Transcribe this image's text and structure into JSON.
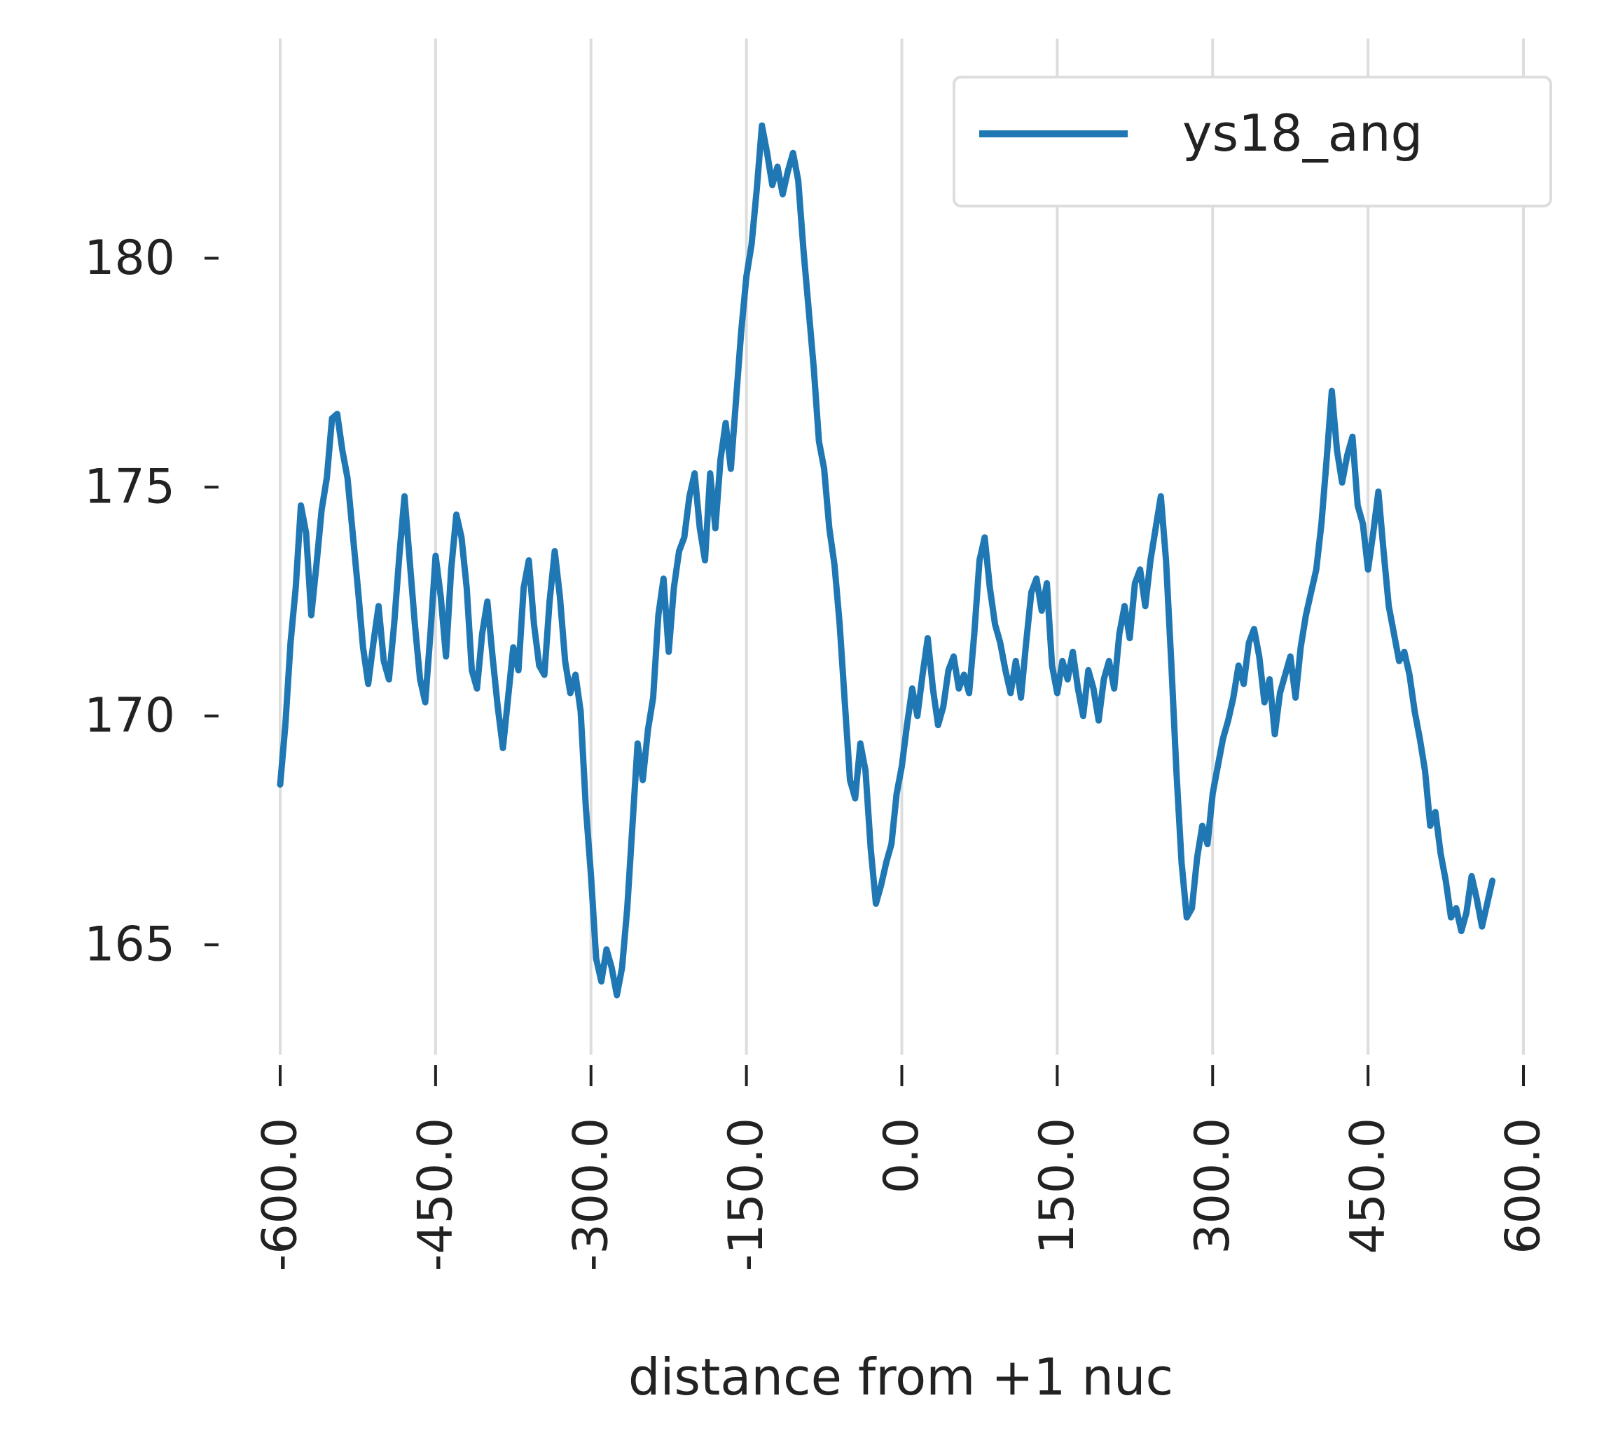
{
  "chart_data": {
    "type": "line",
    "xlabel": "distance from +1 nuc",
    "ylabel": "",
    "xlim": [
      -600,
      600
    ],
    "ylim": [
      162.6,
      184.8
    ],
    "x_ticks": [
      -600,
      -450,
      -300,
      -150,
      0,
      150,
      300,
      450,
      600
    ],
    "x_tick_labels": [
      "-600.0",
      "-450.0",
      "-300.0",
      "-150.0",
      "0.0",
      "150.0",
      "300.0",
      "450.0",
      "600.0"
    ],
    "y_ticks": [
      165,
      170,
      175,
      180
    ],
    "y_tick_labels": [
      "165",
      "170",
      "175",
      "180"
    ],
    "grid": "vertical",
    "legend_position": "top-right",
    "series": [
      {
        "name": "ys18_ang",
        "color": "#1f77b4",
        "points": [
          [
            -600,
            168.5
          ],
          [
            -595,
            169.8
          ],
          [
            -590,
            171.6
          ],
          [
            -585,
            172.8
          ],
          [
            -580,
            174.6
          ],
          [
            -575,
            174.0
          ],
          [
            -570,
            172.2
          ],
          [
            -565,
            173.3
          ],
          [
            -560,
            174.5
          ],
          [
            -555,
            175.2
          ],
          [
            -550,
            176.5
          ],
          [
            -545,
            176.6
          ],
          [
            -540,
            175.8
          ],
          [
            -535,
            175.2
          ],
          [
            -530,
            174.0
          ],
          [
            -525,
            172.8
          ],
          [
            -520,
            171.5
          ],
          [
            -515,
            170.7
          ],
          [
            -510,
            171.6
          ],
          [
            -505,
            172.4
          ],
          [
            -500,
            171.2
          ],
          [
            -495,
            170.8
          ],
          [
            -490,
            172.0
          ],
          [
            -485,
            173.5
          ],
          [
            -480,
            174.8
          ],
          [
            -475,
            173.4
          ],
          [
            -470,
            172.0
          ],
          [
            -465,
            170.8
          ],
          [
            -460,
            170.3
          ],
          [
            -455,
            171.8
          ],
          [
            -450,
            173.5
          ],
          [
            -445,
            172.6
          ],
          [
            -440,
            171.3
          ],
          [
            -435,
            173.2
          ],
          [
            -430,
            174.4
          ],
          [
            -425,
            173.9
          ],
          [
            -420,
            172.8
          ],
          [
            -415,
            171.0
          ],
          [
            -410,
            170.6
          ],
          [
            -405,
            171.8
          ],
          [
            -400,
            172.5
          ],
          [
            -395,
            171.3
          ],
          [
            -390,
            170.2
          ],
          [
            -385,
            169.3
          ],
          [
            -380,
            170.4
          ],
          [
            -375,
            171.5
          ],
          [
            -370,
            171.0
          ],
          [
            -365,
            172.8
          ],
          [
            -360,
            173.4
          ],
          [
            -355,
            172.0
          ],
          [
            -350,
            171.1
          ],
          [
            -345,
            170.9
          ],
          [
            -340,
            172.5
          ],
          [
            -335,
            173.6
          ],
          [
            -330,
            172.6
          ],
          [
            -325,
            171.2
          ],
          [
            -320,
            170.5
          ],
          [
            -315,
            170.9
          ],
          [
            -310,
            170.1
          ],
          [
            -305,
            168.0
          ],
          [
            -300,
            166.5
          ],
          [
            -295,
            164.7
          ],
          [
            -290,
            164.2
          ],
          [
            -285,
            164.9
          ],
          [
            -280,
            164.5
          ],
          [
            -275,
            163.9
          ],
          [
            -270,
            164.5
          ],
          [
            -265,
            165.8
          ],
          [
            -260,
            167.6
          ],
          [
            -255,
            169.4
          ],
          [
            -250,
            168.6
          ],
          [
            -245,
            169.7
          ],
          [
            -240,
            170.4
          ],
          [
            -235,
            172.2
          ],
          [
            -230,
            173.0
          ],
          [
            -225,
            171.4
          ],
          [
            -220,
            172.8
          ],
          [
            -215,
            173.6
          ],
          [
            -210,
            173.9
          ],
          [
            -205,
            174.8
          ],
          [
            -200,
            175.3
          ],
          [
            -195,
            174.1
          ],
          [
            -190,
            173.4
          ],
          [
            -185,
            175.3
          ],
          [
            -180,
            174.1
          ],
          [
            -175,
            175.6
          ],
          [
            -170,
            176.4
          ],
          [
            -165,
            175.4
          ],
          [
            -160,
            176.9
          ],
          [
            -155,
            178.4
          ],
          [
            -150,
            179.6
          ],
          [
            -145,
            180.3
          ],
          [
            -140,
            181.5
          ],
          [
            -135,
            182.9
          ],
          [
            -130,
            182.3
          ],
          [
            -125,
            181.6
          ],
          [
            -120,
            182.0
          ],
          [
            -115,
            181.4
          ],
          [
            -110,
            181.9
          ],
          [
            -105,
            182.3
          ],
          [
            -100,
            181.7
          ],
          [
            -95,
            180.2
          ],
          [
            -90,
            178.9
          ],
          [
            -85,
            177.6
          ],
          [
            -80,
            176.0
          ],
          [
            -75,
            175.4
          ],
          [
            -70,
            174.1
          ],
          [
            -65,
            173.3
          ],
          [
            -60,
            172.0
          ],
          [
            -55,
            170.3
          ],
          [
            -50,
            168.6
          ],
          [
            -45,
            168.2
          ],
          [
            -40,
            169.4
          ],
          [
            -35,
            168.8
          ],
          [
            -30,
            167.1
          ],
          [
            -25,
            165.9
          ],
          [
            -20,
            166.3
          ],
          [
            -15,
            166.8
          ],
          [
            -10,
            167.2
          ],
          [
            -5,
            168.3
          ],
          [
            0,
            168.9
          ],
          [
            5,
            169.8
          ],
          [
            10,
            170.6
          ],
          [
            15,
            170.0
          ],
          [
            20,
            170.9
          ],
          [
            25,
            171.7
          ],
          [
            30,
            170.6
          ],
          [
            35,
            169.8
          ],
          [
            40,
            170.2
          ],
          [
            45,
            171.0
          ],
          [
            50,
            171.3
          ],
          [
            55,
            170.6
          ],
          [
            60,
            170.9
          ],
          [
            65,
            170.5
          ],
          [
            70,
            171.8
          ],
          [
            75,
            173.4
          ],
          [
            80,
            173.9
          ],
          [
            85,
            172.8
          ],
          [
            90,
            172.0
          ],
          [
            95,
            171.6
          ],
          [
            100,
            171.0
          ],
          [
            105,
            170.5
          ],
          [
            110,
            171.2
          ],
          [
            115,
            170.4
          ],
          [
            120,
            171.6
          ],
          [
            125,
            172.7
          ],
          [
            130,
            173.0
          ],
          [
            135,
            172.3
          ],
          [
            140,
            172.9
          ],
          [
            145,
            171.1
          ],
          [
            150,
            170.5
          ],
          [
            155,
            171.2
          ],
          [
            160,
            170.8
          ],
          [
            165,
            171.4
          ],
          [
            170,
            170.6
          ],
          [
            175,
            170.0
          ],
          [
            180,
            171.0
          ],
          [
            185,
            170.6
          ],
          [
            190,
            169.9
          ],
          [
            195,
            170.8
          ],
          [
            200,
            171.2
          ],
          [
            205,
            170.6
          ],
          [
            210,
            171.8
          ],
          [
            215,
            172.4
          ],
          [
            220,
            171.7
          ],
          [
            225,
            172.9
          ],
          [
            230,
            173.2
          ],
          [
            235,
            172.4
          ],
          [
            240,
            173.4
          ],
          [
            245,
            174.1
          ],
          [
            250,
            174.8
          ],
          [
            255,
            173.4
          ],
          [
            260,
            171.2
          ],
          [
            265,
            168.8
          ],
          [
            270,
            166.8
          ],
          [
            275,
            165.6
          ],
          [
            280,
            165.8
          ],
          [
            285,
            166.9
          ],
          [
            290,
            167.6
          ],
          [
            295,
            167.2
          ],
          [
            300,
            168.3
          ],
          [
            305,
            168.9
          ],
          [
            310,
            169.5
          ],
          [
            315,
            169.9
          ],
          [
            320,
            170.4
          ],
          [
            325,
            171.1
          ],
          [
            330,
            170.7
          ],
          [
            335,
            171.6
          ],
          [
            340,
            171.9
          ],
          [
            345,
            171.3
          ],
          [
            350,
            170.3
          ],
          [
            355,
            170.8
          ],
          [
            360,
            169.6
          ],
          [
            365,
            170.5
          ],
          [
            370,
            170.9
          ],
          [
            375,
            171.3
          ],
          [
            380,
            170.4
          ],
          [
            385,
            171.5
          ],
          [
            390,
            172.2
          ],
          [
            395,
            172.7
          ],
          [
            400,
            173.2
          ],
          [
            405,
            174.2
          ],
          [
            410,
            175.6
          ],
          [
            415,
            177.1
          ],
          [
            420,
            175.8
          ],
          [
            425,
            175.1
          ],
          [
            430,
            175.7
          ],
          [
            435,
            176.1
          ],
          [
            440,
            174.6
          ],
          [
            445,
            174.2
          ],
          [
            450,
            173.2
          ],
          [
            455,
            174.0
          ],
          [
            460,
            174.9
          ],
          [
            465,
            173.6
          ],
          [
            470,
            172.4
          ],
          [
            475,
            171.8
          ],
          [
            480,
            171.2
          ],
          [
            485,
            171.4
          ],
          [
            490,
            170.9
          ],
          [
            495,
            170.1
          ],
          [
            500,
            169.5
          ],
          [
            505,
            168.8
          ],
          [
            510,
            167.6
          ],
          [
            515,
            167.9
          ],
          [
            520,
            167.0
          ],
          [
            525,
            166.4
          ],
          [
            530,
            165.6
          ],
          [
            535,
            165.8
          ],
          [
            540,
            165.3
          ],
          [
            545,
            165.7
          ],
          [
            550,
            166.5
          ],
          [
            555,
            166.0
          ],
          [
            560,
            165.4
          ],
          [
            565,
            165.9
          ],
          [
            570,
            166.4
          ]
        ]
      }
    ]
  }
}
